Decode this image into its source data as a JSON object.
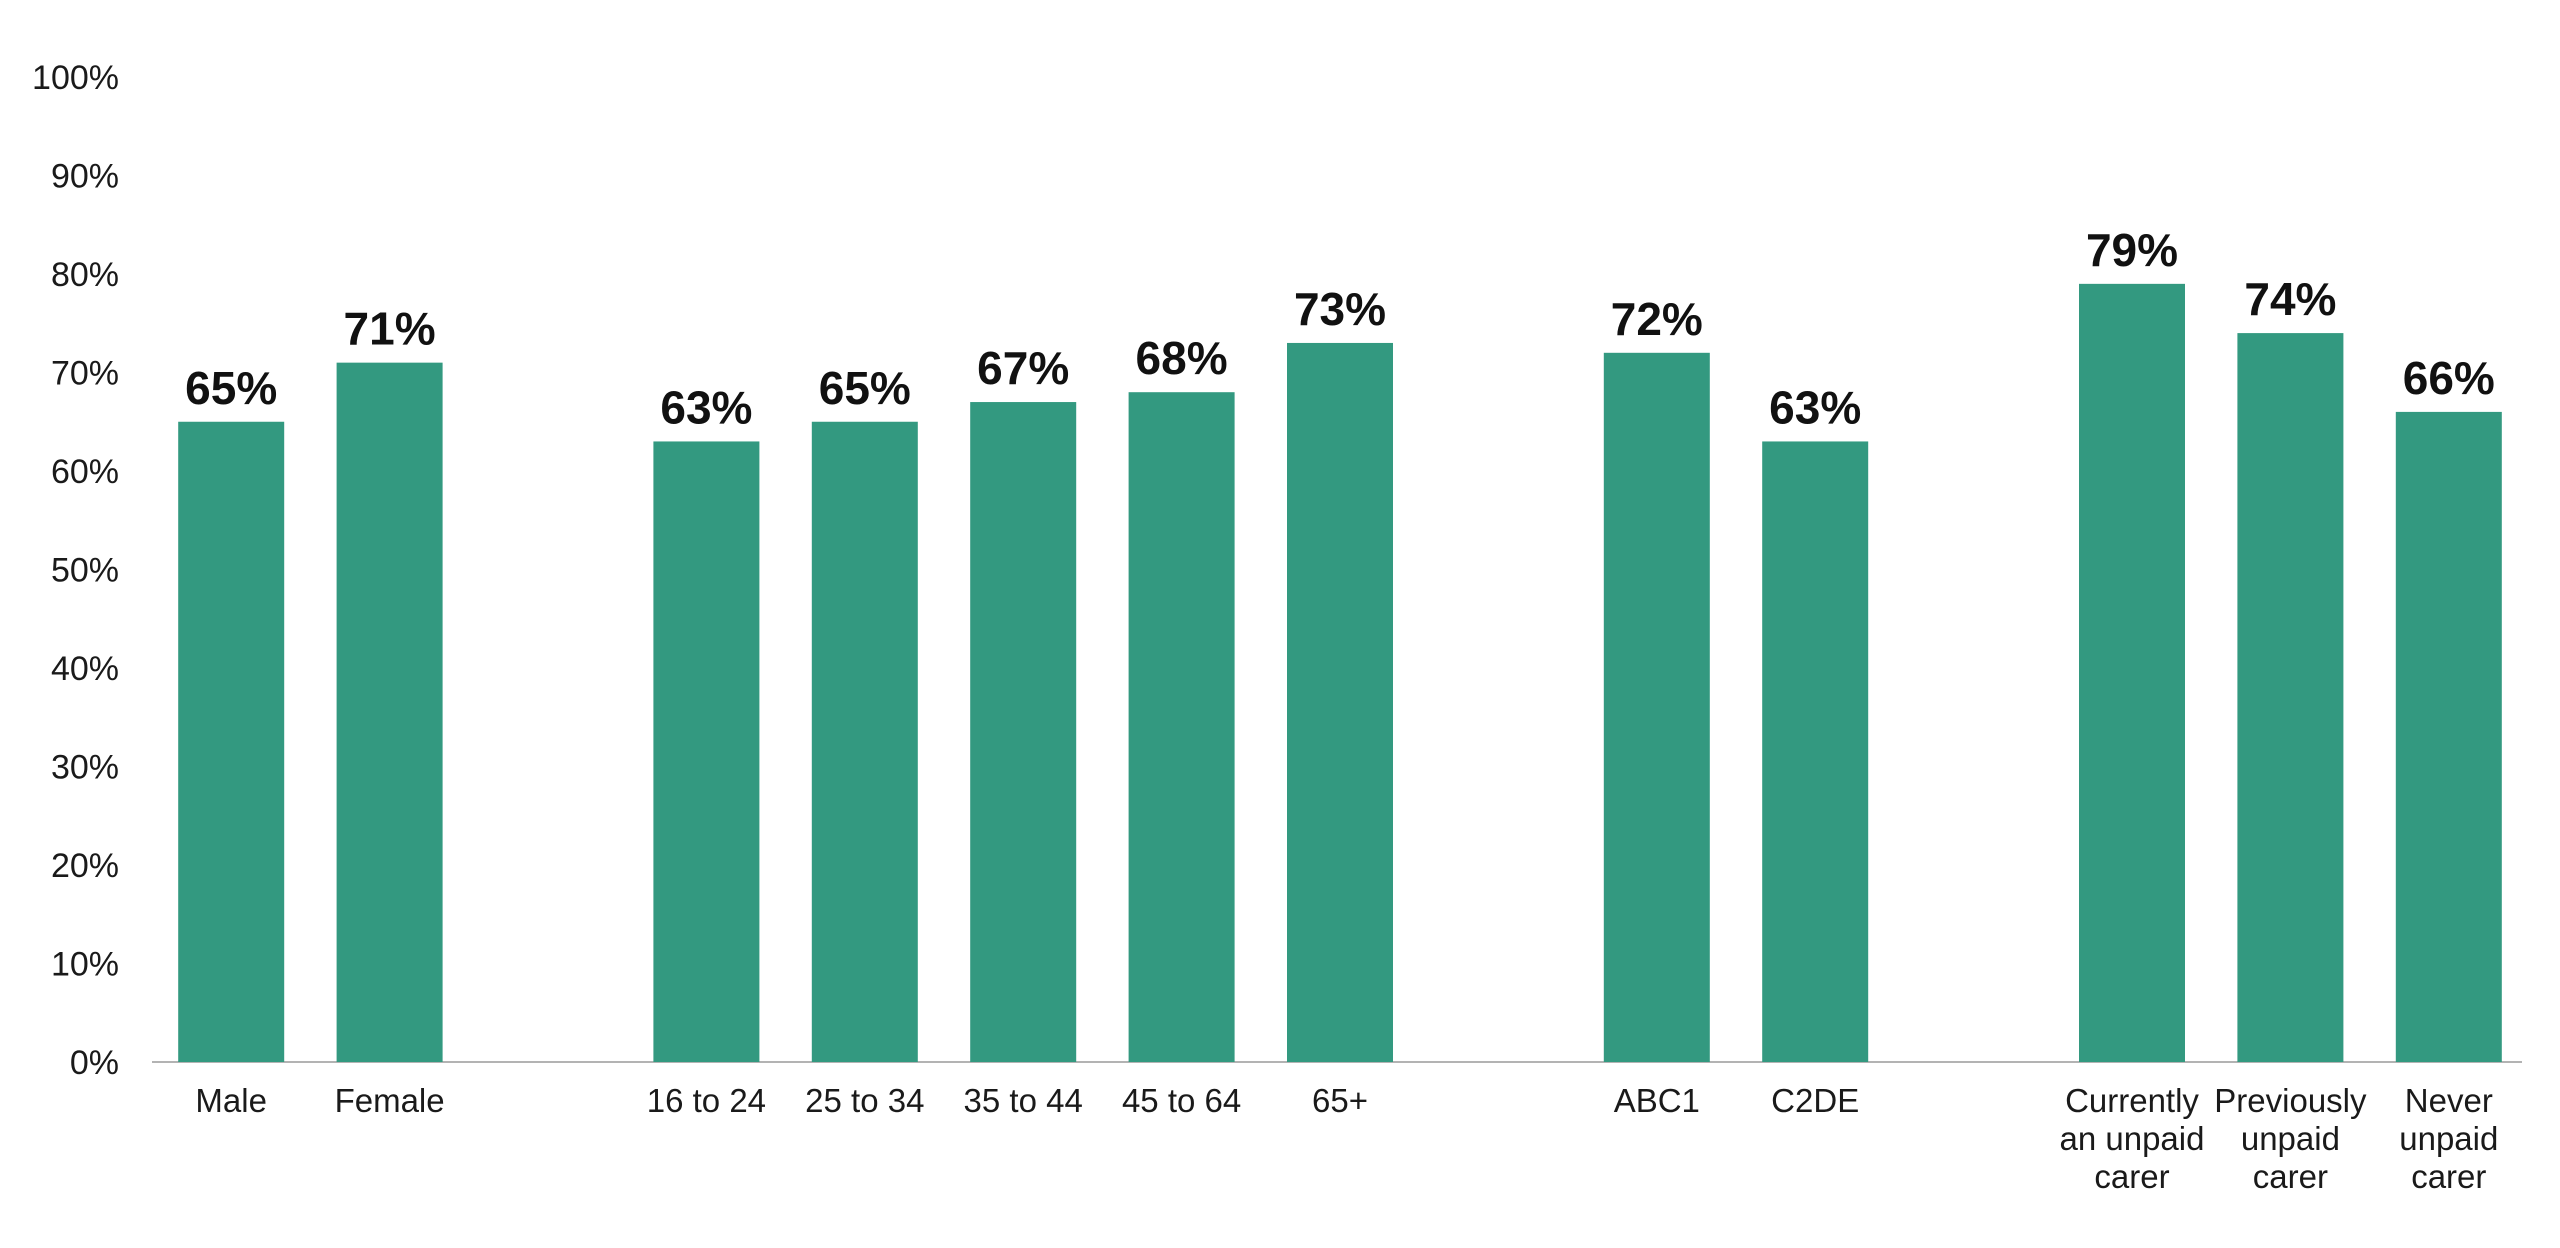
{
  "chart_data": {
    "type": "bar",
    "title": "",
    "xlabel": "",
    "ylabel": "",
    "ylim": [
      0,
      100
    ],
    "yticks": [
      "0%",
      "10%",
      "20%",
      "30%",
      "40%",
      "50%",
      "60%",
      "70%",
      "80%",
      "90%",
      "100%"
    ],
    "grid": false,
    "legend": "none",
    "bar_color": "#339980",
    "groups": [
      {
        "categories": [
          [
            "Male"
          ],
          [
            "Female"
          ]
        ],
        "values": [
          65,
          71
        ],
        "labels": [
          "65%",
          "71%"
        ]
      },
      {
        "categories": [
          [
            "16 to 24"
          ],
          [
            "25 to 34"
          ],
          [
            "35 to 44"
          ],
          [
            "45 to 64"
          ],
          [
            "65+"
          ]
        ],
        "values": [
          63,
          65,
          67,
          68,
          73
        ],
        "labels": [
          "63%",
          "65%",
          "67%",
          "68%",
          "73%"
        ]
      },
      {
        "categories": [
          [
            "ABC1"
          ],
          [
            "C2DE"
          ]
        ],
        "values": [
          72,
          63
        ],
        "labels": [
          "72%",
          "63%"
        ]
      },
      {
        "categories": [
          [
            "Currently",
            "an unpaid",
            "carer"
          ],
          [
            "Previously",
            "unpaid",
            "carer"
          ],
          [
            "Never",
            "unpaid",
            "carer"
          ]
        ],
        "values": [
          79,
          74,
          66
        ],
        "labels": [
          "79%",
          "74%",
          "66%"
        ]
      }
    ]
  }
}
